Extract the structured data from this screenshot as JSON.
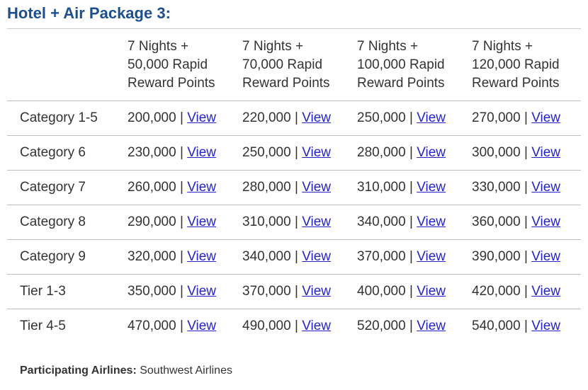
{
  "title": "Hotel + Air Package 3:",
  "columns": [
    [
      "7 Nights +",
      "50,000 Rapid",
      "Reward Points"
    ],
    [
      "7 Nights +",
      "70,000 Rapid",
      "Reward Points"
    ],
    [
      "7 Nights +",
      "100,000 Rapid",
      "Reward Points"
    ],
    [
      "7 Nights +",
      "120,000 Rapid",
      "Reward Points"
    ]
  ],
  "separator": " | ",
  "link_label": "View",
  "rows": [
    {
      "label": "Category 1-5",
      "values": [
        "200,000",
        "220,000",
        "250,000",
        "270,000"
      ]
    },
    {
      "label": "Category 6",
      "values": [
        "230,000",
        "250,000",
        "280,000",
        "300,000"
      ]
    },
    {
      "label": "Category 7",
      "values": [
        "260,000",
        "280,000",
        "310,000",
        "330,000"
      ]
    },
    {
      "label": "Category 8",
      "values": [
        "290,000",
        "310,000",
        "340,000",
        "360,000"
      ]
    },
    {
      "label": "Category 9",
      "values": [
        "320,000",
        "340,000",
        "370,000",
        "390,000"
      ]
    },
    {
      "label": "Tier 1-3",
      "values": [
        "350,000",
        "370,000",
        "400,000",
        "420,000"
      ]
    },
    {
      "label": "Tier 4-5",
      "values": [
        "470,000",
        "490,000",
        "520,000",
        "540,000"
      ]
    }
  ],
  "footer": {
    "label": "Participating Airlines:",
    "value": "Southwest Airlines"
  },
  "colors": {
    "title": "#1d4f8c",
    "link": "#2323c9",
    "text": "#333333",
    "rule": "#bfbfbf"
  }
}
